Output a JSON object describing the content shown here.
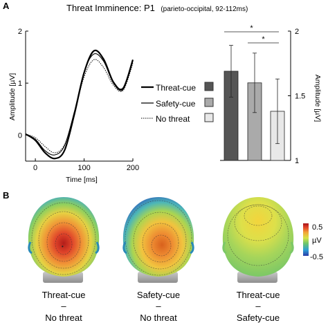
{
  "panel_a": {
    "letter": "A",
    "title": "Threat Imminence: P1",
    "subtitle": "(parieto-occipital, 92-112ms)"
  },
  "panel_b": {
    "letter": "B",
    "colorbar": {
      "max_label": "0.5",
      "unit": "µV",
      "min_label": "-0.5"
    },
    "topomaps": [
      {
        "top": "Threat-cue",
        "dash": "–",
        "bottom": "No threat",
        "peak": 0.5
      },
      {
        "top": "Safety-cue",
        "dash": "–",
        "bottom": "No threat",
        "peak": 0.38
      },
      {
        "top": "Threat-cue",
        "dash": "–",
        "bottom": "Safety-cue",
        "peak": 0.12
      }
    ]
  },
  "colors": {
    "threat_bar": "#555555",
    "safety_bar": "#aaaaaa",
    "nothreat_bar": "#e8e8e8",
    "line": "#000000"
  },
  "chart_data": [
    {
      "type": "line",
      "title": "",
      "xlabel": "Time [ms]",
      "ylabel": "Amplitude [µV]",
      "xlim": [
        -20,
        200
      ],
      "ylim": [
        -0.5,
        2
      ],
      "xticks": [
        0,
        100,
        200
      ],
      "yticks": [
        0,
        1,
        2
      ],
      "grid": false,
      "legend": "right",
      "x": [
        -20,
        0,
        20,
        40,
        60,
        80,
        100,
        120,
        140,
        160,
        180,
        200
      ],
      "series": [
        {
          "name": "Threat-cue",
          "style": "thick",
          "values": [
            0.02,
            -0.1,
            -0.34,
            -0.45,
            -0.29,
            0.4,
            1.2,
            1.62,
            1.46,
            1.02,
            0.9,
            1.45
          ]
        },
        {
          "name": "Safety-cue",
          "style": "thin",
          "values": [
            0.02,
            -0.08,
            -0.3,
            -0.38,
            -0.2,
            0.45,
            1.22,
            1.56,
            1.42,
            1.0,
            0.88,
            1.42
          ]
        },
        {
          "name": "No threat",
          "style": "dotted",
          "values": [
            0.02,
            -0.05,
            -0.22,
            -0.34,
            -0.18,
            0.42,
            1.12,
            1.45,
            1.3,
            0.96,
            0.86,
            1.38
          ]
        }
      ]
    },
    {
      "type": "bar",
      "title": "",
      "ylabel": "Amplitude [µV]",
      "ylim": [
        1,
        2
      ],
      "yticks": [
        1,
        1.5,
        2
      ],
      "categories": [
        "Threat-cue",
        "Safety-cue",
        "No threat"
      ],
      "values": [
        1.69,
        1.6,
        1.38
      ],
      "error": [
        0.2,
        0.23,
        0.25
      ],
      "significance": [
        {
          "from": 0,
          "to": 2,
          "label": "*"
        },
        {
          "from": 1,
          "to": 2,
          "label": "*"
        }
      ]
    }
  ]
}
